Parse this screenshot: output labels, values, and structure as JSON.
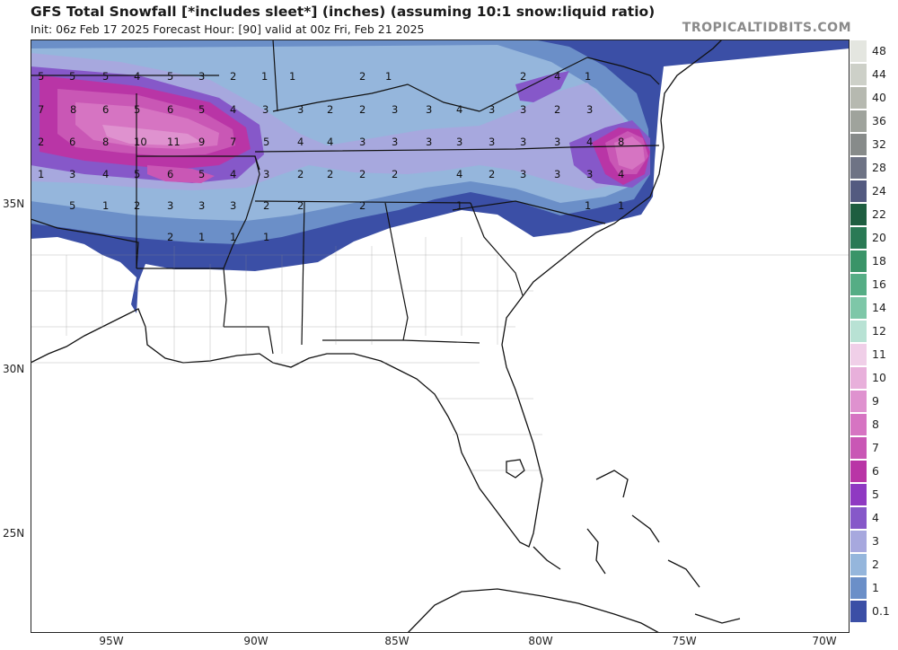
{
  "header": {
    "title": "GFS Total Snowfall [*includes sleet*] (inches) (assuming 10:1 snow:liquid ratio)",
    "subtitle": "Init: 06z Feb 17 2025   Forecast Hour: [90]   valid at 00z Fri, Feb 21 2025",
    "brand": "TROPICALTIDBITS.COM"
  },
  "axes": {
    "lat_labels": [
      "35N",
      "30N",
      "25N"
    ],
    "lon_labels": [
      "95W",
      "90W",
      "85W",
      "80W",
      "75W",
      "70W"
    ]
  },
  "legend": {
    "labels": [
      "48",
      "44",
      "40",
      "36",
      "32",
      "28",
      "24",
      "22",
      "20",
      "18",
      "16",
      "14",
      "12",
      "11",
      "10",
      "9",
      "8",
      "7",
      "6",
      "5",
      "4",
      "3",
      "2",
      "1",
      "0.1"
    ],
    "colors": [
      "#e4e6e0",
      "#cdd0c8",
      "#b6b9b0",
      "#9fa39c",
      "#878b8a",
      "#6e7385",
      "#535a80",
      "#1e5e40",
      "#2a7a55",
      "#3a9468",
      "#55ad85",
      "#7ec7a8",
      "#b8e2d4",
      "#f0cfe8",
      "#e8b0db",
      "#df92cf",
      "#d674c2",
      "#c957b5",
      "#b935a6",
      "#8f39c2",
      "#8658c9",
      "#a7a8de",
      "#95b6dc",
      "#6b8fc8",
      "#3b4fa6"
    ]
  },
  "map": {
    "point_values": [
      "5",
      "5",
      "5",
      "4",
      "5",
      "3",
      "2",
      "1",
      "1",
      "2",
      "1",
      "2",
      "4",
      "1",
      "7",
      "8",
      "6",
      "5",
      "6",
      "5",
      "4",
      "3",
      "3",
      "2",
      "2",
      "3",
      "3",
      "4",
      "3",
      "3",
      "2",
      "3",
      "2",
      "6",
      "8",
      "10",
      "11",
      "9",
      "7",
      "5",
      "4",
      "4",
      "3",
      "3",
      "3",
      "3",
      "3",
      "3",
      "3",
      "4",
      "8",
      "1",
      "3",
      "4",
      "5",
      "6",
      "5",
      "4",
      "3",
      "2",
      "2",
      "2",
      "2",
      "4",
      "2",
      "3",
      "3",
      "3",
      "4",
      "5",
      "1",
      "2",
      "3",
      "3",
      "3",
      "2",
      "2",
      "2",
      "1",
      "1",
      "1",
      "2",
      "1",
      "1",
      "1",
      "1"
    ]
  }
}
